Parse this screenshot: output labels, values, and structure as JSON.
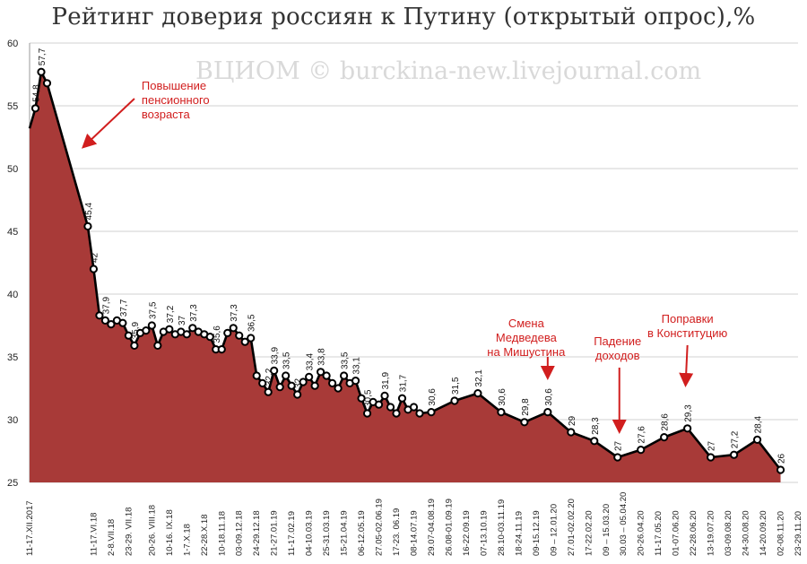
{
  "title": "Рейтинг доверия россиян к Путину (открытый опрос),%",
  "watermark": "ВЦИОМ © burckina-new.livejournal.com",
  "colors": {
    "area": "#a83a38",
    "line": "#000000",
    "marker_fill": "#ffffff",
    "annotation": "#d11e1e",
    "grid": "#d0d0d0"
  },
  "chart_data": {
    "type": "area",
    "ylim": [
      25,
      60
    ],
    "yticks": [
      25,
      30,
      35,
      40,
      45,
      50,
      55,
      60
    ],
    "grid": true,
    "points": [
      {
        "x": 0,
        "y": 53.2,
        "label": ""
      },
      {
        "x": 1,
        "y": 54.8,
        "label": "54,8"
      },
      {
        "x": 2,
        "y": 57.7,
        "label": "57,7"
      },
      {
        "x": 3,
        "y": 56.8,
        "label": ""
      },
      {
        "x": 10,
        "y": 45.4,
        "label": "45,4"
      },
      {
        "x": 11,
        "y": 42.0,
        "label": "42"
      },
      {
        "x": 12,
        "y": 38.3,
        "label": ""
      },
      {
        "x": 13,
        "y": 37.9,
        "label": "37,9"
      },
      {
        "x": 14,
        "y": 37.6,
        "label": ""
      },
      {
        "x": 15,
        "y": 37.9,
        "label": ""
      },
      {
        "x": 16,
        "y": 37.7,
        "label": "37,7"
      },
      {
        "x": 17,
        "y": 36.7,
        "label": ""
      },
      {
        "x": 18,
        "y": 35.9,
        "label": "35,9"
      },
      {
        "x": 19,
        "y": 36.9,
        "label": ""
      },
      {
        "x": 20,
        "y": 37.1,
        "label": ""
      },
      {
        "x": 21,
        "y": 37.5,
        "label": "37,5"
      },
      {
        "x": 22,
        "y": 35.9,
        "label": ""
      },
      {
        "x": 23,
        "y": 37.0,
        "label": ""
      },
      {
        "x": 24,
        "y": 37.2,
        "label": "37,2"
      },
      {
        "x": 25,
        "y": 36.8,
        "label": ""
      },
      {
        "x": 26,
        "y": 37.0,
        "label": "37"
      },
      {
        "x": 27,
        "y": 36.8,
        "label": ""
      },
      {
        "x": 28,
        "y": 37.3,
        "label": "37,3"
      },
      {
        "x": 29,
        "y": 37.0,
        "label": ""
      },
      {
        "x": 30,
        "y": 36.8,
        "label": ""
      },
      {
        "x": 31,
        "y": 36.6,
        "label": ""
      },
      {
        "x": 32,
        "y": 35.6,
        "label": "35,6"
      },
      {
        "x": 33,
        "y": 35.6,
        "label": ""
      },
      {
        "x": 34,
        "y": 36.9,
        "label": ""
      },
      {
        "x": 35,
        "y": 37.3,
        "label": "37,3"
      },
      {
        "x": 36,
        "y": 36.7,
        "label": ""
      },
      {
        "x": 37,
        "y": 36.2,
        "label": ""
      },
      {
        "x": 38,
        "y": 36.5,
        "label": "36,5"
      },
      {
        "x": 39,
        "y": 33.5,
        "label": ""
      },
      {
        "x": 40,
        "y": 32.9,
        "label": ""
      },
      {
        "x": 41,
        "y": 32.2,
        "label": "32,2"
      },
      {
        "x": 42,
        "y": 33.9,
        "label": "33,9"
      },
      {
        "x": 43,
        "y": 32.6,
        "label": ""
      },
      {
        "x": 44,
        "y": 33.5,
        "label": "33,5"
      },
      {
        "x": 45,
        "y": 32.7,
        "label": ""
      },
      {
        "x": 46,
        "y": 32.0,
        "label": "32"
      },
      {
        "x": 47,
        "y": 33.0,
        "label": ""
      },
      {
        "x": 48,
        "y": 33.4,
        "label": "33,4"
      },
      {
        "x": 49,
        "y": 32.7,
        "label": ""
      },
      {
        "x": 50,
        "y": 33.8,
        "label": "33,8"
      },
      {
        "x": 51,
        "y": 33.5,
        "label": ""
      },
      {
        "x": 52,
        "y": 32.9,
        "label": ""
      },
      {
        "x": 53,
        "y": 32.5,
        "label": ""
      },
      {
        "x": 54,
        "y": 33.5,
        "label": "33,5"
      },
      {
        "x": 55,
        "y": 32.9,
        "label": ""
      },
      {
        "x": 56,
        "y": 33.1,
        "label": "33,1"
      },
      {
        "x": 57,
        "y": 31.7,
        "label": ""
      },
      {
        "x": 58,
        "y": 30.5,
        "label": "30,5"
      },
      {
        "x": 59,
        "y": 31.4,
        "label": ""
      },
      {
        "x": 60,
        "y": 31.2,
        "label": ""
      },
      {
        "x": 61,
        "y": 31.9,
        "label": "31,9"
      },
      {
        "x": 62,
        "y": 31.0,
        "label": ""
      },
      {
        "x": 63,
        "y": 30.5,
        "label": ""
      },
      {
        "x": 64,
        "y": 31.7,
        "label": "31,7"
      },
      {
        "x": 65,
        "y": 30.8,
        "label": ""
      },
      {
        "x": 66,
        "y": 31.0,
        "label": ""
      },
      {
        "x": 67,
        "y": 30.5,
        "label": ""
      },
      {
        "x": 69,
        "y": 30.6,
        "label": "30,6"
      },
      {
        "x": 73,
        "y": 31.5,
        "label": "31,5"
      },
      {
        "x": 77,
        "y": 32.1,
        "label": "32,1"
      },
      {
        "x": 81,
        "y": 30.6,
        "label": "30,6"
      },
      {
        "x": 85,
        "y": 29.8,
        "label": "29,8"
      },
      {
        "x": 89,
        "y": 30.6,
        "label": "30,6"
      },
      {
        "x": 93,
        "y": 29.0,
        "label": "29"
      },
      {
        "x": 97,
        "y": 28.3,
        "label": "28,3"
      },
      {
        "x": 101,
        "y": 27.0,
        "label": "27"
      },
      {
        "x": 105,
        "y": 27.6,
        "label": "27,6"
      },
      {
        "x": 109,
        "y": 28.6,
        "label": "28,6"
      },
      {
        "x": 113,
        "y": 29.3,
        "label": "29,3"
      },
      {
        "x": 117,
        "y": 27.0,
        "label": "27"
      },
      {
        "x": 121,
        "y": 27.2,
        "label": "27,2"
      },
      {
        "x": 125,
        "y": 28.4,
        "label": "28,4"
      },
      {
        "x": 129,
        "y": 26.0,
        "label": "26"
      }
    ],
    "x_tick_labels": [
      {
        "x": 0,
        "label": "11-17.XII.2017"
      },
      {
        "x": 11,
        "label": "11-17.VI.18"
      },
      {
        "x": 14,
        "label": "2-8.VII.18"
      },
      {
        "x": 17,
        "label": "23-29. VII.18"
      },
      {
        "x": 21,
        "label": "20-26. VIII.18"
      },
      {
        "x": 24,
        "label": "10-16. IX.18"
      },
      {
        "x": 27,
        "label": "1-7.X.18"
      },
      {
        "x": 30,
        "label": "22-28.X.18"
      },
      {
        "x": 33,
        "label": "10-18.11.18"
      },
      {
        "x": 36,
        "label": "03-09.12.18"
      },
      {
        "x": 39,
        "label": "24-29.12.18"
      },
      {
        "x": 42,
        "label": "21-27.01.19"
      },
      {
        "x": 45,
        "label": "11-17.02.19"
      },
      {
        "x": 48,
        "label": "04-10.03.19"
      },
      {
        "x": 51,
        "label": "25-31.03.19"
      },
      {
        "x": 54,
        "label": "15-21.04.19"
      },
      {
        "x": 57,
        "label": "06-12.05.19"
      },
      {
        "x": 60,
        "label": "27.05-02.06.19"
      },
      {
        "x": 63,
        "label": "17-23. 06.19"
      },
      {
        "x": 66,
        "label": "08-14.07.19"
      },
      {
        "x": 69,
        "label": "29.07-04.08.19"
      },
      {
        "x": 72,
        "label": "26.08-01.09.19"
      },
      {
        "x": 75,
        "label": "16-22.09.19"
      },
      {
        "x": 78,
        "label": "07-13.10.19"
      },
      {
        "x": 81,
        "label": "28.10-03.11.19"
      },
      {
        "x": 84,
        "label": "18-24.11.19"
      },
      {
        "x": 87,
        "label": "09-15.12.19"
      },
      {
        "x": 90,
        "label": "09 – 12.01.20"
      },
      {
        "x": 93,
        "label": "27.01-02.02.20"
      },
      {
        "x": 96,
        "label": "17-22.02.20"
      },
      {
        "x": 99,
        "label": "09 – 15.03.20"
      },
      {
        "x": 102,
        "label": "30.03 – 05.04.20"
      },
      {
        "x": 105,
        "label": "20-26.04.20"
      },
      {
        "x": 108,
        "label": "11-17.05.20"
      },
      {
        "x": 111,
        "label": "01-07.06.20"
      },
      {
        "x": 114,
        "label": "22-28.06.20"
      },
      {
        "x": 117,
        "label": "13-19.07.20"
      },
      {
        "x": 120,
        "label": "03-09.08.20"
      },
      {
        "x": 123,
        "label": "24-30.08.20"
      },
      {
        "x": 126,
        "label": "14-20.09.20"
      },
      {
        "x": 129,
        "label": "02-08.11.20"
      },
      {
        "x": 132,
        "label": "23-29.11.20"
      }
    ],
    "annotations": [
      {
        "lines": [
          "Повышение",
          "пенсионного",
          "возраста"
        ],
        "x": 10,
        "y": 56
      },
      {
        "lines": [
          "Смена",
          "Медведева",
          "на Мишустина"
        ],
        "x": 89,
        "y": 32.5
      },
      {
        "lines": [
          "Падение",
          "доходов"
        ],
        "x": 101,
        "y": 28
      },
      {
        "lines": [
          "Поправки",
          "в Конституцию"
        ],
        "x": 113,
        "y": 30.2
      }
    ]
  }
}
